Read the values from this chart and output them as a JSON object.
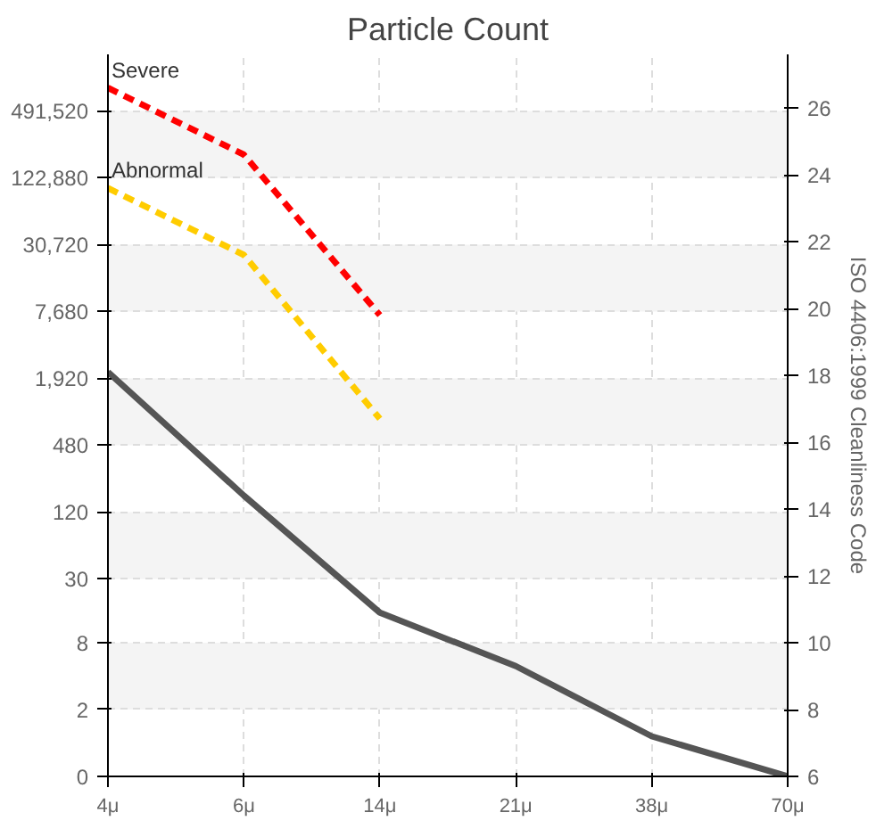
{
  "chart_data": {
    "type": "line",
    "title": "Particle Count",
    "y2label": "ISO 4406:1999 Cleanliness Code",
    "categories": [
      "4μ",
      "6μ",
      "14μ",
      "21μ",
      "38μ",
      "70μ"
    ],
    "series": [
      {
        "name": "Severe",
        "color": "#ff0000",
        "line_style": "dashed",
        "axis": "y2",
        "values": [
          26.6,
          24.6,
          19.8,
          null,
          null,
          null
        ]
      },
      {
        "name": "Abnormal",
        "color": "#ffcc00",
        "line_style": "dashed",
        "axis": "y2",
        "values": [
          23.6,
          21.6,
          16.7,
          null,
          null,
          null
        ]
      },
      {
        "color": "#555555",
        "line_style": "solid",
        "axis": "y2",
        "values": [
          18.1,
          14.4,
          10.9,
          9.3,
          7.2,
          6
        ]
      }
    ],
    "log": "y",
    "ylim": [
      0.5,
      1588250
    ],
    "yticks": [
      {
        "value": 0.5,
        "label": "0"
      },
      2,
      8,
      30,
      120,
      480,
      {
        "value": 1920,
        "label": "1,920"
      },
      {
        "value": 7680,
        "label": "7,680"
      },
      {
        "value": 30720,
        "label": "30,720"
      },
      {
        "value": 122880,
        "label": "122,880"
      },
      {
        "value": 491520,
        "label": "491,520"
      }
    ],
    "y2lim": [
      6,
      27.6
    ],
    "y2ticks": [
      6,
      8,
      10,
      12,
      14,
      16,
      18,
      20,
      22,
      24,
      26
    ],
    "grid": true
  }
}
